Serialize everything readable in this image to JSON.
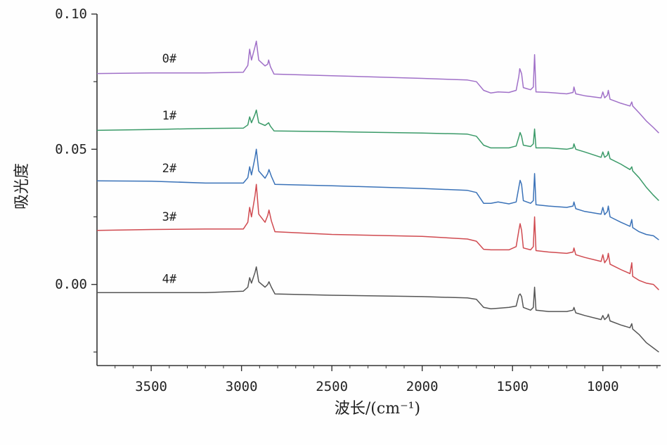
{
  "chart_data": {
    "type": "line",
    "xlabel": "波长/(cm⁻¹)",
    "ylabel": "吸光度",
    "xlim": [
      3800,
      680
    ],
    "ylim": [
      -0.03,
      0.1
    ],
    "x_reversed": true,
    "grid": false,
    "x_ticks": [
      3500,
      3000,
      2500,
      2000,
      1500,
      1000
    ],
    "x_tick_labels": [
      "3500",
      "3000",
      "2500",
      "2000",
      "1500",
      "1000"
    ],
    "y_ticks": [
      0.0,
      0.05,
      0.1
    ],
    "y_tick_labels": [
      "0.00",
      "0.05",
      "0.10"
    ],
    "series": [
      {
        "name": "0#",
        "color": "#a070c8",
        "baseline": 0.078,
        "label_position": [
          3400,
          0.082
        ],
        "points": [
          [
            3800,
            0.078
          ],
          [
            3500,
            0.0782
          ],
          [
            3200,
            0.0782
          ],
          [
            2990,
            0.0785
          ],
          [
            2965,
            0.081
          ],
          [
            2955,
            0.087
          ],
          [
            2945,
            0.083
          ],
          [
            2925,
            0.088
          ],
          [
            2918,
            0.09
          ],
          [
            2905,
            0.083
          ],
          [
            2870,
            0.0808
          ],
          [
            2855,
            0.0815
          ],
          [
            2850,
            0.083
          ],
          [
            2840,
            0.0805
          ],
          [
            2820,
            0.0778
          ],
          [
            2500,
            0.0772
          ],
          [
            2000,
            0.0762
          ],
          [
            1750,
            0.0756
          ],
          [
            1700,
            0.075
          ],
          [
            1660,
            0.0718
          ],
          [
            1620,
            0.0708
          ],
          [
            1580,
            0.0712
          ],
          [
            1520,
            0.071
          ],
          [
            1480,
            0.0718
          ],
          [
            1465,
            0.077
          ],
          [
            1460,
            0.0798
          ],
          [
            1450,
            0.078
          ],
          [
            1440,
            0.0728
          ],
          [
            1400,
            0.072
          ],
          [
            1385,
            0.073
          ],
          [
            1378,
            0.085
          ],
          [
            1370,
            0.0712
          ],
          [
            1300,
            0.071
          ],
          [
            1200,
            0.0705
          ],
          [
            1165,
            0.071
          ],
          [
            1160,
            0.073
          ],
          [
            1150,
            0.0705
          ],
          [
            1100,
            0.0698
          ],
          [
            1010,
            0.069
          ],
          [
            1000,
            0.0712
          ],
          [
            990,
            0.069
          ],
          [
            975,
            0.07
          ],
          [
            970,
            0.0718
          ],
          [
            960,
            0.0685
          ],
          [
            900,
            0.067
          ],
          [
            850,
            0.066
          ],
          [
            840,
            0.0675
          ],
          [
            835,
            0.066
          ],
          [
            800,
            0.0635
          ],
          [
            760,
            0.0605
          ],
          [
            720,
            0.058
          ],
          [
            690,
            0.056
          ]
        ]
      },
      {
        "name": "1#",
        "color": "#3a9a68",
        "baseline": 0.057,
        "label_position": [
          3400,
          0.061
        ],
        "points": [
          [
            3800,
            0.057
          ],
          [
            3500,
            0.0573
          ],
          [
            3200,
            0.0577
          ],
          [
            2990,
            0.0578
          ],
          [
            2965,
            0.059
          ],
          [
            2955,
            0.062
          ],
          [
            2945,
            0.0598
          ],
          [
            2925,
            0.063
          ],
          [
            2918,
            0.0645
          ],
          [
            2905,
            0.0598
          ],
          [
            2870,
            0.0588
          ],
          [
            2850,
            0.0598
          ],
          [
            2840,
            0.0585
          ],
          [
            2820,
            0.0568
          ],
          [
            2500,
            0.0565
          ],
          [
            2000,
            0.056
          ],
          [
            1750,
            0.0556
          ],
          [
            1700,
            0.0548
          ],
          [
            1660,
            0.0515
          ],
          [
            1620,
            0.0505
          ],
          [
            1580,
            0.0505
          ],
          [
            1520,
            0.0505
          ],
          [
            1480,
            0.0512
          ],
          [
            1465,
            0.0545
          ],
          [
            1458,
            0.0562
          ],
          [
            1450,
            0.0548
          ],
          [
            1440,
            0.0515
          ],
          [
            1400,
            0.051
          ],
          [
            1385,
            0.052
          ],
          [
            1378,
            0.0575
          ],
          [
            1370,
            0.0505
          ],
          [
            1300,
            0.0505
          ],
          [
            1200,
            0.05
          ],
          [
            1165,
            0.0505
          ],
          [
            1160,
            0.052
          ],
          [
            1150,
            0.05
          ],
          [
            1100,
            0.049
          ],
          [
            1010,
            0.047
          ],
          [
            1000,
            0.049
          ],
          [
            990,
            0.047
          ],
          [
            975,
            0.0478
          ],
          [
            970,
            0.0492
          ],
          [
            960,
            0.0465
          ],
          [
            900,
            0.0445
          ],
          [
            850,
            0.0425
          ],
          [
            840,
            0.0435
          ],
          [
            835,
            0.042
          ],
          [
            800,
            0.0395
          ],
          [
            760,
            0.036
          ],
          [
            720,
            0.033
          ],
          [
            690,
            0.031
          ]
        ]
      },
      {
        "name": "2#",
        "color": "#3a72b8",
        "baseline": 0.038,
        "label_position": [
          3400,
          0.0415
        ],
        "points": [
          [
            3800,
            0.0383
          ],
          [
            3500,
            0.0382
          ],
          [
            3200,
            0.0375
          ],
          [
            2990,
            0.0375
          ],
          [
            2965,
            0.0395
          ],
          [
            2955,
            0.0435
          ],
          [
            2945,
            0.0405
          ],
          [
            2925,
            0.047
          ],
          [
            2918,
            0.05
          ],
          [
            2905,
            0.042
          ],
          [
            2870,
            0.0393
          ],
          [
            2855,
            0.041
          ],
          [
            2848,
            0.0425
          ],
          [
            2835,
            0.04
          ],
          [
            2815,
            0.037
          ],
          [
            2500,
            0.0365
          ],
          [
            2000,
            0.0355
          ],
          [
            1750,
            0.0348
          ],
          [
            1700,
            0.034
          ],
          [
            1660,
            0.03
          ],
          [
            1620,
            0.03
          ],
          [
            1580,
            0.0305
          ],
          [
            1520,
            0.0298
          ],
          [
            1480,
            0.0305
          ],
          [
            1465,
            0.036
          ],
          [
            1458,
            0.0385
          ],
          [
            1450,
            0.037
          ],
          [
            1440,
            0.031
          ],
          [
            1400,
            0.03
          ],
          [
            1385,
            0.031
          ],
          [
            1378,
            0.041
          ],
          [
            1370,
            0.0295
          ],
          [
            1300,
            0.029
          ],
          [
            1200,
            0.0285
          ],
          [
            1165,
            0.029
          ],
          [
            1160,
            0.0305
          ],
          [
            1150,
            0.028
          ],
          [
            1100,
            0.027
          ],
          [
            1010,
            0.026
          ],
          [
            1000,
            0.0285
          ],
          [
            990,
            0.0258
          ],
          [
            975,
            0.027
          ],
          [
            970,
            0.029
          ],
          [
            960,
            0.025
          ],
          [
            900,
            0.023
          ],
          [
            850,
            0.0215
          ],
          [
            840,
            0.024
          ],
          [
            835,
            0.021
          ],
          [
            800,
            0.0195
          ],
          [
            760,
            0.0185
          ],
          [
            720,
            0.018
          ],
          [
            690,
            0.0165
          ]
        ]
      },
      {
        "name": "3#",
        "color": "#d04a50",
        "baseline": 0.02,
        "label_position": [
          3400,
          0.0235
        ],
        "points": [
          [
            3800,
            0.02
          ],
          [
            3500,
            0.0203
          ],
          [
            3200,
            0.0205
          ],
          [
            2990,
            0.0205
          ],
          [
            2965,
            0.023
          ],
          [
            2955,
            0.0285
          ],
          [
            2945,
            0.025
          ],
          [
            2925,
            0.033
          ],
          [
            2918,
            0.037
          ],
          [
            2905,
            0.026
          ],
          [
            2870,
            0.023
          ],
          [
            2855,
            0.0255
          ],
          [
            2848,
            0.0275
          ],
          [
            2835,
            0.0235
          ],
          [
            2815,
            0.0195
          ],
          [
            2500,
            0.0185
          ],
          [
            2000,
            0.0178
          ],
          [
            1750,
            0.0168
          ],
          [
            1700,
            0.016
          ],
          [
            1660,
            0.013
          ],
          [
            1620,
            0.0128
          ],
          [
            1580,
            0.0128
          ],
          [
            1520,
            0.0128
          ],
          [
            1480,
            0.014
          ],
          [
            1465,
            0.02
          ],
          [
            1458,
            0.0225
          ],
          [
            1450,
            0.02
          ],
          [
            1440,
            0.0135
          ],
          [
            1400,
            0.0128
          ],
          [
            1385,
            0.014
          ],
          [
            1378,
            0.025
          ],
          [
            1370,
            0.0125
          ],
          [
            1300,
            0.012
          ],
          [
            1200,
            0.0115
          ],
          [
            1165,
            0.012
          ],
          [
            1160,
            0.0135
          ],
          [
            1150,
            0.011
          ],
          [
            1100,
            0.01
          ],
          [
            1010,
            0.0085
          ],
          [
            1000,
            0.011
          ],
          [
            990,
            0.008
          ],
          [
            975,
            0.0095
          ],
          [
            970,
            0.0115
          ],
          [
            960,
            0.0075
          ],
          [
            900,
            0.0055
          ],
          [
            850,
            0.004
          ],
          [
            840,
            0.008
          ],
          [
            835,
            0.003
          ],
          [
            800,
            0.0015
          ],
          [
            760,
            0.0005
          ],
          [
            720,
            0.0
          ],
          [
            690,
            -0.002
          ]
        ]
      },
      {
        "name": "4#",
        "color": "#555555",
        "baseline": -0.003,
        "label_position": [
          3400,
          0.0005
        ],
        "points": [
          [
            3800,
            -0.003
          ],
          [
            3500,
            -0.003
          ],
          [
            3200,
            -0.003
          ],
          [
            2990,
            -0.0025
          ],
          [
            2965,
            -0.001
          ],
          [
            2955,
            0.0025
          ],
          [
            2945,
            0.0005
          ],
          [
            2925,
            0.0045
          ],
          [
            2918,
            0.0065
          ],
          [
            2905,
            0.001
          ],
          [
            2870,
            -0.001
          ],
          [
            2855,
            0.0
          ],
          [
            2848,
            0.001
          ],
          [
            2835,
            -0.001
          ],
          [
            2815,
            -0.0035
          ],
          [
            2500,
            -0.004
          ],
          [
            2000,
            -0.0045
          ],
          [
            1750,
            -0.005
          ],
          [
            1700,
            -0.0055
          ],
          [
            1660,
            -0.0085
          ],
          [
            1620,
            -0.009
          ],
          [
            1580,
            -0.0088
          ],
          [
            1520,
            -0.0085
          ],
          [
            1480,
            -0.008
          ],
          [
            1465,
            -0.004
          ],
          [
            1458,
            -0.0035
          ],
          [
            1450,
            -0.0045
          ],
          [
            1440,
            -0.0085
          ],
          [
            1400,
            -0.0095
          ],
          [
            1385,
            -0.0085
          ],
          [
            1378,
            -0.001
          ],
          [
            1370,
            -0.0095
          ],
          [
            1300,
            -0.01
          ],
          [
            1200,
            -0.01
          ],
          [
            1165,
            -0.0095
          ],
          [
            1160,
            -0.0085
          ],
          [
            1150,
            -0.0105
          ],
          [
            1100,
            -0.0115
          ],
          [
            1010,
            -0.013
          ],
          [
            1000,
            -0.0115
          ],
          [
            990,
            -0.013
          ],
          [
            975,
            -0.012
          ],
          [
            970,
            -0.011
          ],
          [
            960,
            -0.0135
          ],
          [
            900,
            -0.015
          ],
          [
            850,
            -0.016
          ],
          [
            840,
            -0.0145
          ],
          [
            835,
            -0.0165
          ],
          [
            800,
            -0.0185
          ],
          [
            760,
            -0.0215
          ],
          [
            720,
            -0.0235
          ],
          [
            690,
            -0.025
          ]
        ]
      }
    ]
  }
}
